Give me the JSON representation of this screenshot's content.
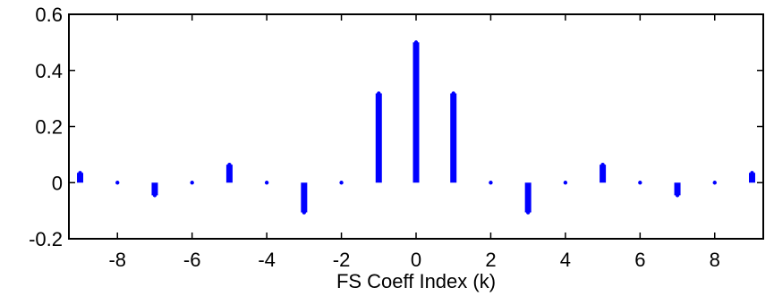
{
  "chart_data": {
    "type": "stem",
    "title": "",
    "xlabel": "FS Coeff Index (k)",
    "ylabel": "",
    "xlim": [
      -9.3,
      9.3
    ],
    "ylim": [
      -0.2,
      0.6
    ],
    "xticks": [
      -8,
      -6,
      -4,
      -2,
      0,
      2,
      4,
      6,
      8
    ],
    "yticks": [
      -0.2,
      0,
      0.2,
      0.4,
      0.6
    ],
    "xtick_labels": [
      "-8",
      "-6",
      "-4",
      "-2",
      "0",
      "2",
      "4",
      "6",
      "8"
    ],
    "ytick_labels": [
      "-0.2",
      "0",
      "0.2",
      "0.4",
      "0.6"
    ],
    "grid": false,
    "series": [
      {
        "color": "#0000ff",
        "x": [
          -9,
          -8,
          -7,
          -6,
          -5,
          -4,
          -3,
          -2,
          -1,
          0,
          1,
          2,
          3,
          4,
          5,
          6,
          7,
          8,
          9
        ],
        "values": [
          0.035,
          0,
          -0.045,
          0,
          0.064,
          0,
          -0.106,
          0,
          0.318,
          0.5,
          0.318,
          0,
          -0.106,
          0,
          0.064,
          0,
          -0.045,
          0,
          0.035
        ]
      }
    ]
  }
}
